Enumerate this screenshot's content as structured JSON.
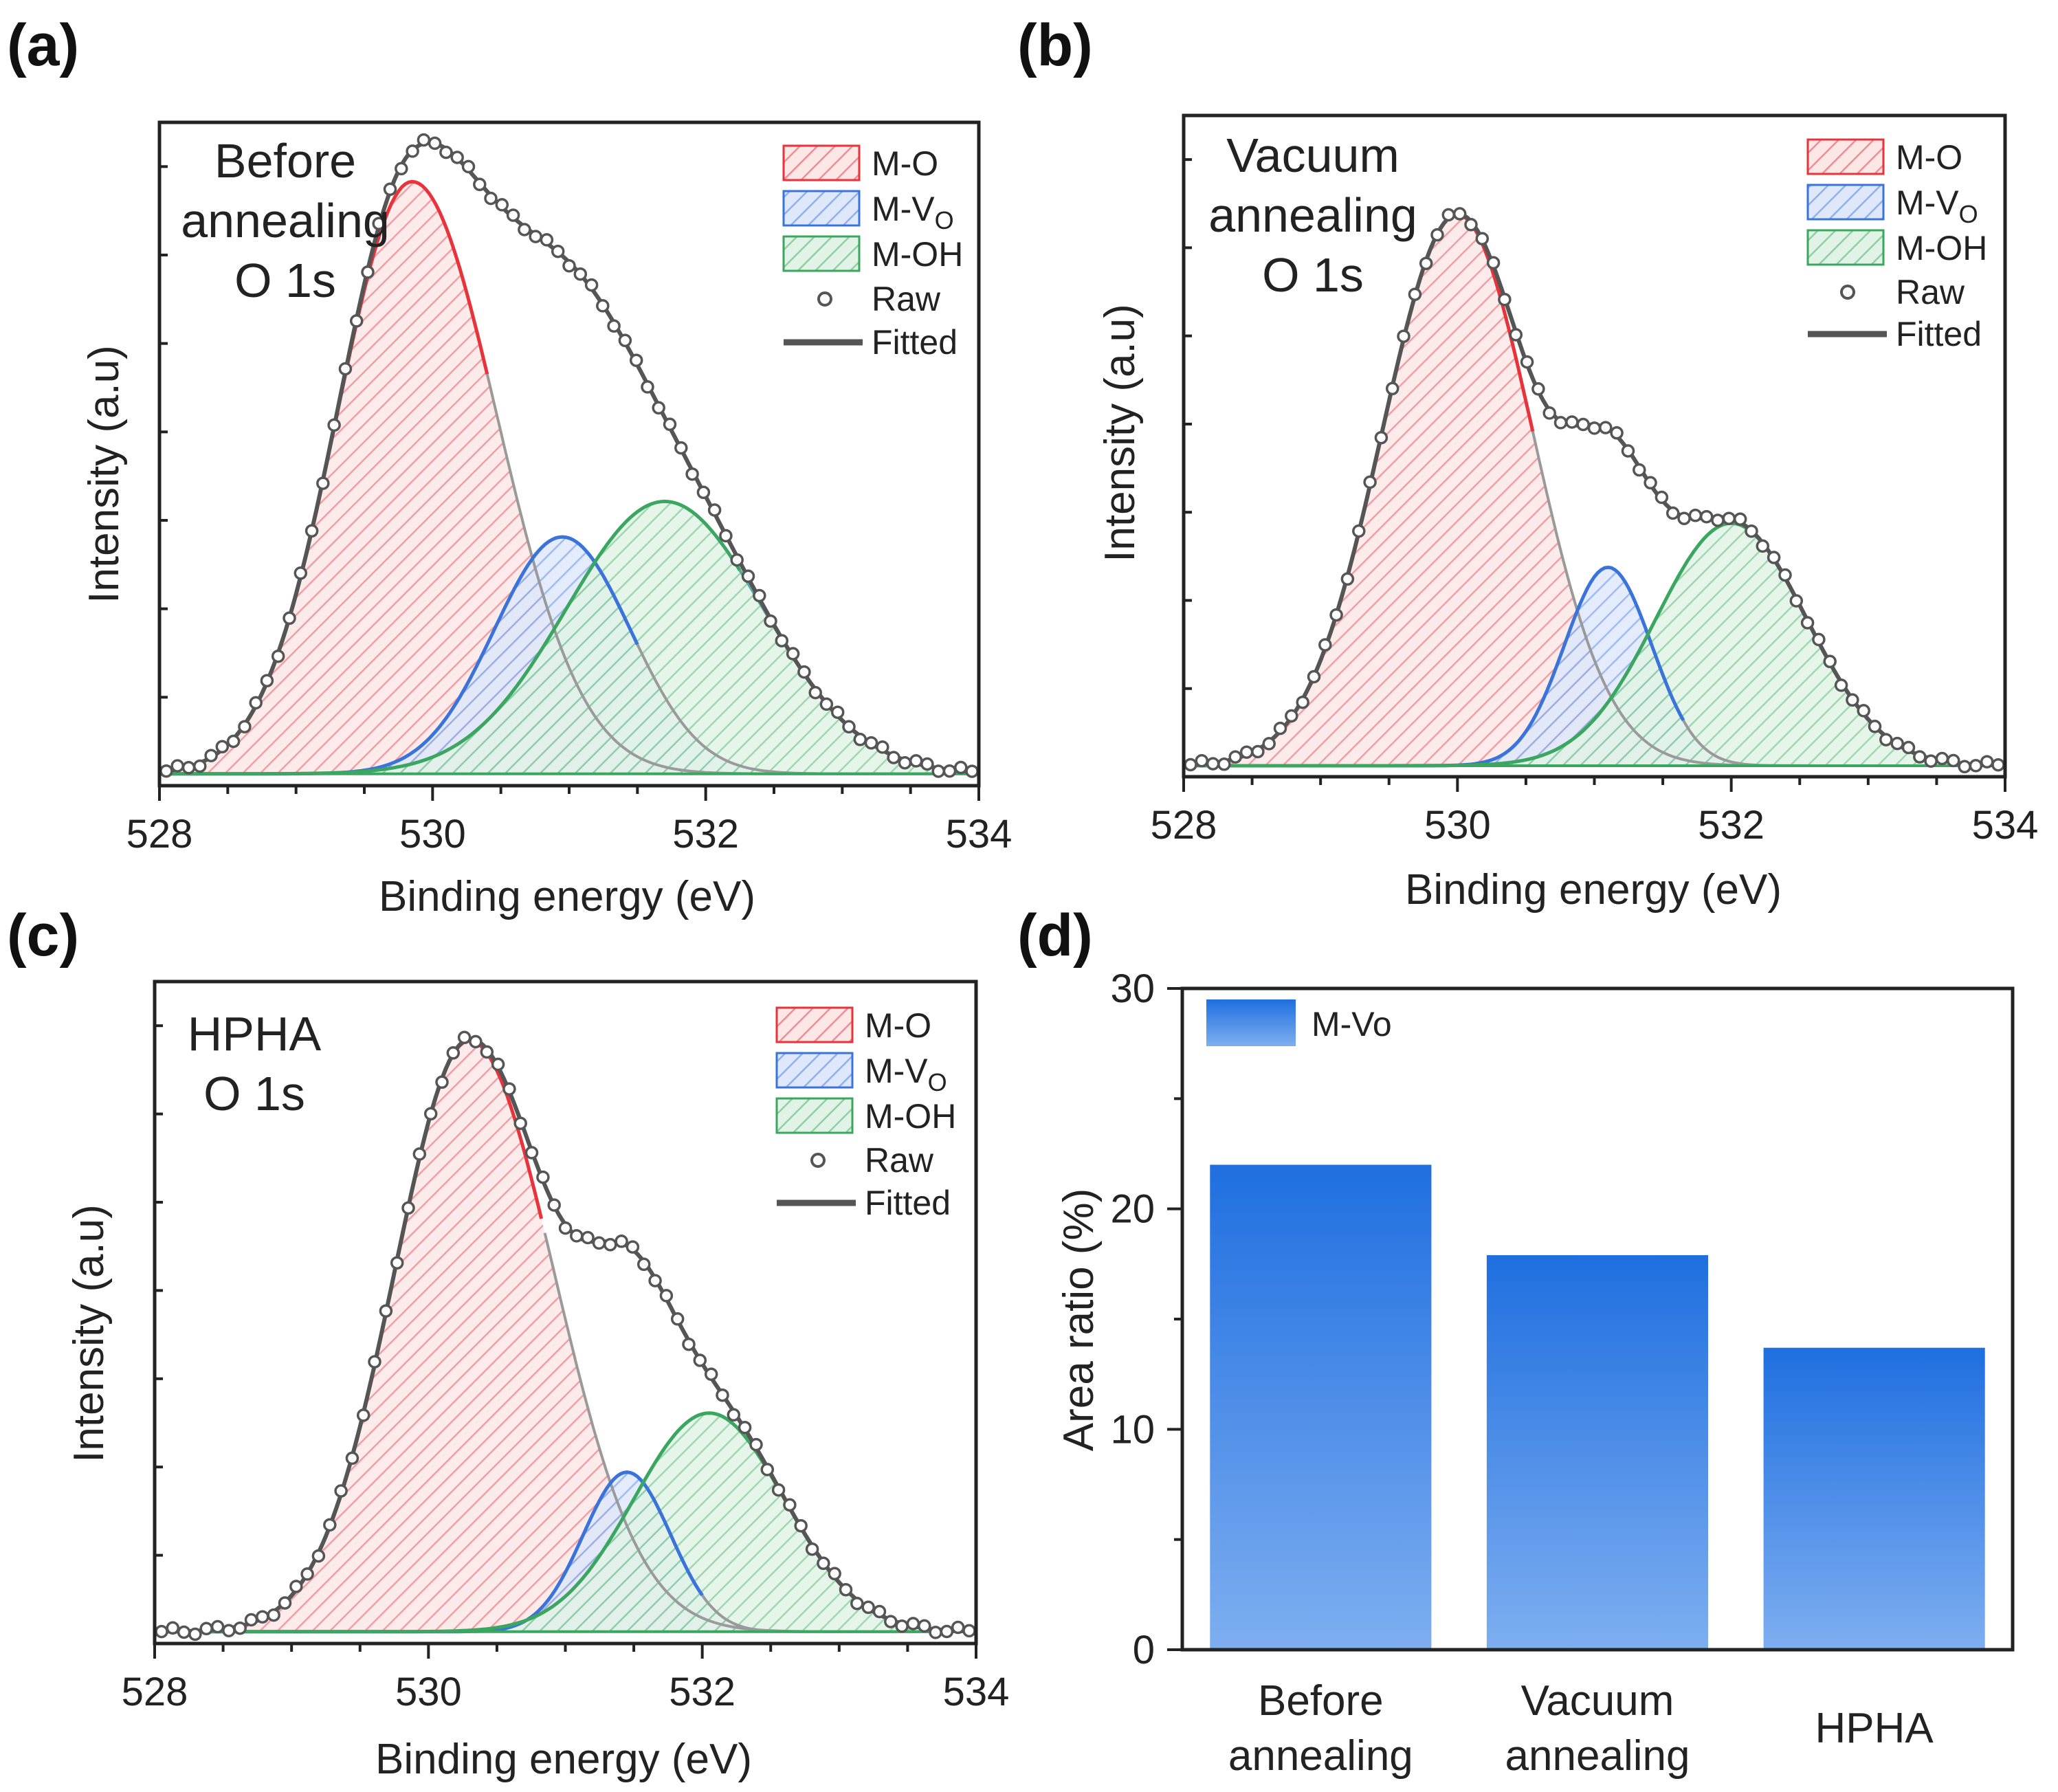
{
  "colors": {
    "m_o": "#e8333a",
    "m_vo": "#3a73d9",
    "m_oh": "#3aa65f",
    "fitted": "#555555",
    "raw_marker": "#555555",
    "bar_top": "#1f6fe0",
    "bar_bottom": "#7eaef0"
  },
  "chart_data": [
    {
      "id": "a",
      "type": "line",
      "panel_label": "(a)",
      "annotation": [
        "Before",
        "annealing",
        "O 1s"
      ],
      "xlabel": "Binding energy (eV)",
      "ylabel": "Intensity (a.u)",
      "xlim": [
        528,
        534
      ],
      "xticks": [
        528,
        530,
        532,
        534
      ],
      "ylim": [
        0,
        1.12
      ],
      "legend": [
        "M-O",
        "M-V",
        "M-OH",
        "Raw",
        "Fitted"
      ],
      "legend_subscript": "O",
      "baseline": 0.02,
      "peaks": [
        {
          "name": "M-O",
          "center": 529.85,
          "height": 1.0,
          "sigma_low": 0.55,
          "sigma_high": 0.62
        },
        {
          "name": "M-Vo",
          "center": 530.95,
          "height": 0.4,
          "sigma": 0.5
        },
        {
          "name": "M-OH",
          "center": 531.7,
          "height": 0.46,
          "sigma": 0.72
        }
      ]
    },
    {
      "id": "b",
      "type": "line",
      "panel_label": "(b)",
      "annotation": [
        "Vacuum",
        "annealing",
        "O 1s"
      ],
      "xlabel": "Binding energy (eV)",
      "ylabel": "Intensity (a.u)",
      "xlim": [
        528,
        534
      ],
      "xticks": [
        528,
        530,
        532,
        534
      ],
      "ylim": [
        0,
        1.2
      ],
      "legend": [
        "M-O",
        "M-V",
        "M-OH",
        "Raw",
        "Fitted"
      ],
      "legend_subscript": "O",
      "baseline": 0.02,
      "peaks": [
        {
          "name": "M-O",
          "center": 530.0,
          "height": 1.0,
          "sigma_low": 0.55,
          "sigma_high": 0.55
        },
        {
          "name": "M-Vo",
          "center": 531.1,
          "height": 0.36,
          "sigma": 0.32
        },
        {
          "name": "M-OH",
          "center": 532.0,
          "height": 0.44,
          "sigma": 0.55
        }
      ]
    },
    {
      "id": "c",
      "type": "line",
      "panel_label": "(c)",
      "annotation": [
        "HPHA",
        "O 1s"
      ],
      "xlabel": "Binding energy (eV)",
      "ylabel": "Intensity (a.u)",
      "xlim": [
        528,
        534
      ],
      "xticks": [
        528,
        530,
        532,
        534
      ],
      "ylim": [
        0,
        1.12
      ],
      "legend": [
        "M-O",
        "M-V",
        "M-OH",
        "Raw",
        "Fitted"
      ],
      "legend_subscript": "O",
      "baseline": 0.02,
      "peaks": [
        {
          "name": "M-O",
          "center": 530.3,
          "height": 1.0,
          "sigma_low": 0.55,
          "sigma_high": 0.62
        },
        {
          "name": "M-Vo",
          "center": 531.45,
          "height": 0.27,
          "sigma": 0.32
        },
        {
          "name": "M-OH",
          "center": 532.05,
          "height": 0.37,
          "sigma": 0.55
        }
      ]
    },
    {
      "id": "d",
      "type": "bar",
      "panel_label": "(d)",
      "ylabel": "Area ratio (%)",
      "ylim": [
        0,
        30
      ],
      "yticks": [
        0,
        10,
        20,
        30
      ],
      "categories": [
        [
          "Before",
          "annealing"
        ],
        [
          "Vacuum",
          "annealing"
        ],
        [
          "HPHA"
        ]
      ],
      "series": [
        {
          "name": "M-Vo",
          "values": [
            22.0,
            17.9,
            13.7
          ]
        }
      ],
      "legend": [
        "M-Vo"
      ]
    }
  ]
}
